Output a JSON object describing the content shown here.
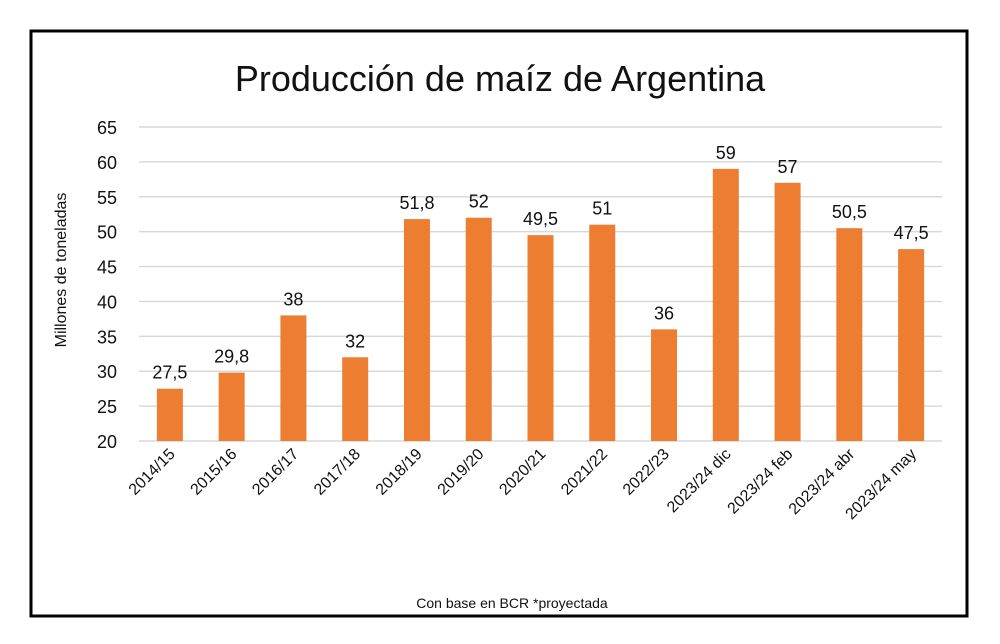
{
  "chart_data": {
    "type": "bar",
    "title": "Producción de maíz de Argentina",
    "ylabel": "Millones de toneladas",
    "xlabel": "Con base en BCR *proyectada",
    "ylim": [
      20,
      65
    ],
    "yticks": [
      "20",
      "25",
      "30",
      "35",
      "40",
      "45",
      "50",
      "55",
      "60",
      "65"
    ],
    "grid": true,
    "categories": [
      "2014/15",
      "2015/16",
      "2016/17",
      "2017/18",
      "2018/19",
      "2019/20",
      "2020/21",
      "2021/22",
      "2022/23",
      "2023/24 dic",
      "2023/24 feb",
      "2023/24 abr",
      "2023/24 may"
    ],
    "values": [
      27.5,
      29.8,
      38,
      32,
      51.8,
      52,
      49.5,
      51,
      36,
      59,
      57,
      50.5,
      47.5
    ],
    "data_labels": [
      "27,5",
      "29,8",
      "38",
      "32",
      "51,8",
      "52",
      "49,5",
      "51",
      "36",
      "59",
      "57",
      "50,5",
      "47,5"
    ],
    "colors": {
      "bar": "#ED7D31",
      "grid": "#D9D9D9",
      "border": "#000000"
    }
  }
}
